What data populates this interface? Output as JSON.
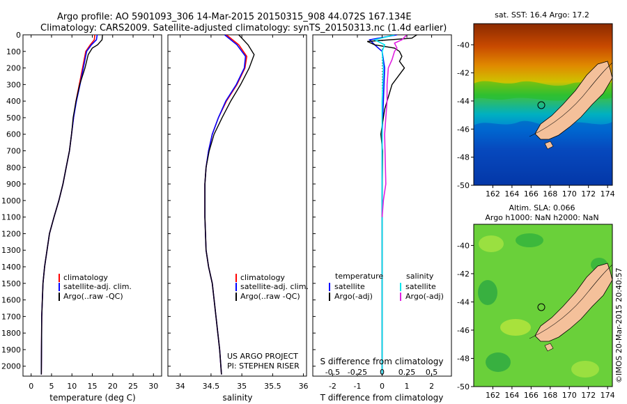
{
  "header": {
    "line1": "Argo profile: AO 5901093_306 14-Mar-2015 20150315_908 44.072S 167.134E",
    "line2": "Climatology: CARS2009. Satellite-adjusted climatology: synTS_20150313.nc (1.4d earlier)"
  },
  "credit": {
    "project": "US ARGO PROJECT",
    "pi": "PI: STEPHEN RISER",
    "stamp": "©IMOS 20-Mar-2015 20:40:57"
  },
  "chart_data": [
    {
      "type": "line",
      "id": "temperature",
      "xlabel": "temperature (deg C)",
      "ylabel": "",
      "xlim": [
        -2,
        32
      ],
      "xticks": [
        0,
        5,
        10,
        15,
        20,
        25,
        30
      ],
      "ylim": [
        2060,
        0
      ],
      "yticks": [
        0,
        100,
        200,
        300,
        400,
        500,
        600,
        700,
        800,
        900,
        1000,
        1100,
        1200,
        1300,
        1400,
        1500,
        1600,
        1700,
        1800,
        1900,
        2000
      ],
      "legend": [
        "climatology",
        "satellite-adj. clim.",
        "Argo(..raw -QC)"
      ],
      "series": [
        {
          "name": "climatology",
          "color": "#ff0000",
          "x": [
            15.6,
            15.5,
            14.5,
            13.4,
            12.6,
            11.8,
            11.0,
            10.4,
            9.9,
            9.4,
            8.6,
            7.8,
            6.8,
            5.6,
            4.5,
            3.9,
            3.3,
            2.9,
            2.6,
            2.5
          ],
          "y": [
            0,
            30,
            60,
            100,
            200,
            300,
            400,
            500,
            600,
            700,
            800,
            900,
            1000,
            1100,
            1200,
            1300,
            1400,
            1500,
            1700,
            2050
          ]
        },
        {
          "name": "satellite-adj. clim.",
          "color": "#0000ff",
          "x": [
            16.2,
            16.0,
            14.8,
            13.6,
            12.8,
            12.0,
            11.1,
            10.4,
            9.9,
            9.4,
            8.6,
            7.8,
            6.8,
            5.6,
            4.5,
            3.9,
            3.3,
            2.9,
            2.6,
            2.5
          ],
          "y": [
            0,
            30,
            60,
            100,
            200,
            300,
            400,
            500,
            600,
            700,
            800,
            900,
            1000,
            1100,
            1200,
            1300,
            1400,
            1500,
            1700,
            2050
          ]
        },
        {
          "name": "Argo(..raw -QC)",
          "color": "#000000",
          "x": [
            17.5,
            17.4,
            16.3,
            15.0,
            14.0,
            13.2,
            11.9,
            11.0,
            10.3,
            9.9,
            9.4,
            8.6,
            7.8,
            6.8,
            5.6,
            4.5,
            3.9,
            3.3,
            2.9,
            2.6,
            2.5
          ],
          "y": [
            0,
            30,
            60,
            80,
            120,
            200,
            300,
            400,
            500,
            600,
            700,
            800,
            900,
            1000,
            1100,
            1200,
            1300,
            1400,
            1500,
            1700,
            2050
          ]
        }
      ]
    },
    {
      "type": "line",
      "id": "salinity",
      "xlabel": "salinity",
      "ylabel": "",
      "xlim": [
        33.8,
        36.05
      ],
      "xticks": [
        34,
        34.5,
        35,
        35.5,
        36
      ],
      "ylim": [
        2060,
        0
      ],
      "yticks": [],
      "legend": [
        "climatology",
        "satellite-adj. clim.",
        "Argo(..raw -QC)"
      ],
      "series": [
        {
          "name": "climatology",
          "color": "#ff0000",
          "x": [
            34.75,
            34.95,
            35.08,
            35.05,
            34.92,
            34.75,
            34.62,
            34.52,
            34.46,
            34.42,
            34.4,
            34.4,
            34.42,
            34.46,
            34.52,
            34.58,
            34.64,
            34.67
          ],
          "y": [
            0,
            60,
            130,
            200,
            300,
            400,
            500,
            600,
            700,
            800,
            900,
            1100,
            1300,
            1400,
            1500,
            1700,
            1900,
            2050
          ]
        },
        {
          "name": "satellite-adj. clim.",
          "color": "#0000ff",
          "x": [
            34.72,
            34.92,
            35.06,
            35.04,
            34.91,
            34.74,
            34.62,
            34.52,
            34.46,
            34.42,
            34.4,
            34.4,
            34.42,
            34.46,
            34.52,
            34.58,
            34.64,
            34.67
          ],
          "y": [
            0,
            60,
            130,
            200,
            300,
            400,
            500,
            600,
            700,
            800,
            900,
            1100,
            1300,
            1400,
            1500,
            1700,
            1900,
            2050
          ]
        },
        {
          "name": "Argo(..raw -QC)",
          "color": "#000000",
          "x": [
            34.95,
            35.1,
            35.2,
            35.12,
            34.98,
            34.82,
            34.68,
            34.55,
            34.47,
            34.42,
            34.4,
            34.4,
            34.42,
            34.46,
            34.52,
            34.58,
            34.64,
            34.67
          ],
          "y": [
            0,
            60,
            120,
            200,
            300,
            400,
            500,
            600,
            700,
            800,
            900,
            1100,
            1300,
            1400,
            1500,
            1700,
            1900,
            2050
          ]
        }
      ]
    },
    {
      "type": "line",
      "id": "difference",
      "xlabel": "T difference from climatology",
      "top_label": "S difference from climatology",
      "xlim": [
        -2.8,
        2.8
      ],
      "xticks": [
        -2,
        -1,
        0,
        1,
        2
      ],
      "top_ticks": [
        "-0.5",
        "-0.25",
        "0",
        "0.25",
        "0.5"
      ],
      "ylim": [
        2060,
        0
      ],
      "yticks": [],
      "legend_headers": [
        "temperature",
        "salinity"
      ],
      "legend": [
        "satellite",
        "Argo(-adj)",
        "satellite",
        "Argo(-adj)"
      ],
      "series": [
        {
          "name": "satellite",
          "group": "temperature",
          "color": "#0000ff",
          "x": [
            0.6,
            -0.5,
            -0.3,
            0.0,
            0.1,
            0.05,
            0.0,
            0.0,
            0.0,
            0.0
          ],
          "y": [
            0,
            30,
            60,
            100,
            200,
            400,
            600,
            1000,
            1400,
            2050
          ]
        },
        {
          "name": "Argo(-adj)",
          "group": "temperature",
          "color": "#000000",
          "x": [
            1.4,
            1.2,
            -0.6,
            -0.3,
            0.5,
            0.7,
            0.8,
            0.7,
            0.9,
            0.7,
            0.4,
            0.1,
            0.0,
            -0.05,
            0.02,
            0.0,
            0.0,
            0.0
          ],
          "y": [
            0,
            20,
            40,
            60,
            80,
            100,
            130,
            160,
            200,
            240,
            300,
            450,
            550,
            600,
            700,
            1000,
            1500,
            2050
          ]
        },
        {
          "name": "satellite",
          "group": "salinity",
          "color": "#00e5ee",
          "x": [
            0.5,
            -0.3,
            0.1,
            0.0,
            0.05,
            0.0,
            0.0,
            0.0
          ],
          "y": [
            0,
            30,
            60,
            100,
            200,
            400,
            1000,
            2050
          ]
        },
        {
          "name": "Argo(-adj)",
          "group": "salinity",
          "color": "#e020e0",
          "x": [
            1.0,
            0.8,
            0.5,
            0.6,
            0.5,
            0.4,
            0.25,
            0.2,
            0.2,
            0.15,
            0.1,
            0.15,
            0.05,
            0.0
          ],
          "y": [
            0,
            30,
            50,
            80,
            100,
            150,
            200,
            300,
            400,
            500,
            600,
            900,
            1000,
            1100
          ]
        }
      ]
    },
    {
      "type": "heatmap",
      "id": "sst-map",
      "title": "sat. SST: 16.4 Argo: 17.2",
      "xlim": [
        160,
        174.5
      ],
      "xticks": [
        162,
        164,
        166,
        168,
        170,
        172,
        174
      ],
      "ylim": [
        -50,
        -38.5
      ],
      "yticks": [
        -40,
        -42,
        -44,
        -46,
        -48,
        -50
      ],
      "argo_position": {
        "lon": 167.134,
        "lat": -44.072
      }
    },
    {
      "type": "heatmap",
      "id": "sla-map",
      "title": "Altim. SLA: 0.066",
      "subtitle": "Argo h1000: NaN h2000: NaN",
      "xlim": [
        160,
        174.5
      ],
      "xticks": [
        162,
        164,
        166,
        168,
        170,
        172,
        174
      ],
      "ylim": [
        -50,
        -38.5
      ],
      "yticks": [
        -40,
        -42,
        -44,
        -46,
        -48,
        -50
      ],
      "argo_position": {
        "lon": 167.134,
        "lat": -44.072
      }
    }
  ]
}
